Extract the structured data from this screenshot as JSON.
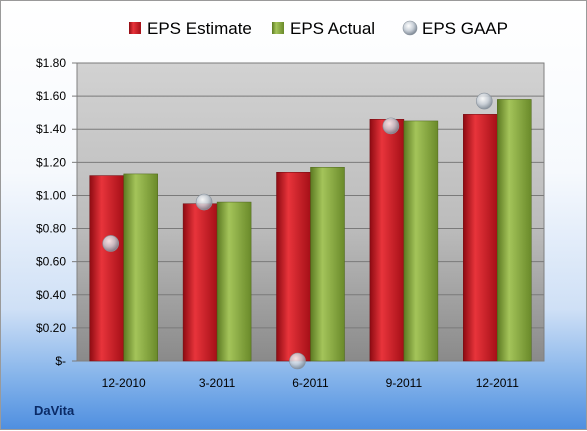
{
  "chart_data": {
    "type": "bar",
    "categories": [
      "12-2010",
      "3-2011",
      "6-2011",
      "9-2011",
      "12-2011"
    ],
    "series": [
      {
        "name": "EPS Estimate",
        "kind": "bar",
        "values": [
          1.12,
          0.95,
          1.14,
          1.46,
          1.49
        ],
        "color": "#c0141c"
      },
      {
        "name": "EPS Actual",
        "kind": "bar",
        "values": [
          1.13,
          0.96,
          1.17,
          1.45,
          1.58
        ],
        "color": "#7a9a32"
      },
      {
        "name": "EPS GAAP",
        "kind": "marker",
        "values": [
          0.71,
          0.96,
          0.0,
          1.42,
          1.57
        ],
        "color": "#b9c3cf"
      }
    ],
    "ylim": [
      0,
      1.8
    ],
    "yticks": [
      0,
      0.2,
      0.4,
      0.6,
      0.8,
      1.0,
      1.2,
      1.4,
      1.6,
      1.8
    ],
    "ytick_labels": [
      "$-",
      "$0.20",
      "$0.40",
      "$0.60",
      "$0.80",
      "$1.00",
      "$1.20",
      "$1.40",
      "$1.60",
      "$1.80"
    ],
    "grid": true,
    "legend_position": "top"
  },
  "company": "DaVita"
}
